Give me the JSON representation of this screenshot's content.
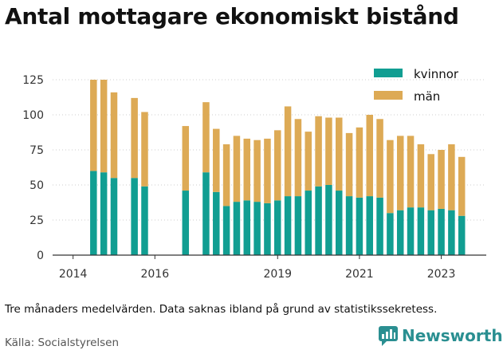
{
  "title": "Antal mottagare ekonomiskt bistånd",
  "caption": "Tre månaders medelvärden. Data saknas ibland på grund av statistikssekretess.",
  "source": "Källa: Socialstyrelsen",
  "brand": {
    "name": "Newsworthy",
    "color": "#2a8f91",
    "icon": "newsworthy-logo-icon"
  },
  "colors": {
    "kvinnor": "#119e92",
    "man": "#ddaa55",
    "grid": "#cccccc",
    "axis": "#333333"
  },
  "chart_data": {
    "type": "bar",
    "stacked": true,
    "title": "Antal mottagare ekonomiskt bistånd",
    "xlabel": "",
    "ylabel": "",
    "ylim": [
      0,
      125
    ],
    "yticks": [
      0,
      25,
      50,
      75,
      100,
      125
    ],
    "xticks": [
      {
        "label": "2014",
        "x": 2014.0
      },
      {
        "label": "2016",
        "x": 2016.0
      },
      {
        "label": "2019",
        "x": 2019.0
      },
      {
        "label": "2021",
        "x": 2021.0
      },
      {
        "label": "2023",
        "x": 2023.0
      }
    ],
    "grid": true,
    "legend_position": "top-right",
    "x": [
      2014.5,
      2014.75,
      2015.0,
      2015.5,
      2015.75,
      2016.75,
      2017.25,
      2017.5,
      2017.75,
      2018.0,
      2018.25,
      2018.5,
      2018.75,
      2019.0,
      2019.25,
      2019.5,
      2019.75,
      2020.0,
      2020.25,
      2020.5,
      2020.75,
      2021.0,
      2021.25,
      2021.5,
      2021.75,
      2022.0,
      2022.25,
      2022.5,
      2022.75,
      2023.0,
      2023.25,
      2023.5
    ],
    "series": [
      {
        "name": "kvinnor",
        "values": [
          60,
          59,
          55,
          55,
          49,
          46,
          59,
          45,
          35,
          38,
          39,
          38,
          37,
          39,
          42,
          42,
          46,
          49,
          50,
          46,
          42,
          41,
          42,
          41,
          30,
          32,
          34,
          34,
          32,
          33,
          32,
          28
        ]
      },
      {
        "name": "män",
        "values": [
          65,
          66,
          61,
          57,
          53,
          46,
          50,
          45,
          44,
          47,
          44,
          44,
          46,
          50,
          64,
          55,
          42,
          50,
          48,
          52,
          45,
          50,
          58,
          56,
          52,
          53,
          51,
          45,
          40,
          42,
          47,
          42
        ]
      }
    ]
  }
}
